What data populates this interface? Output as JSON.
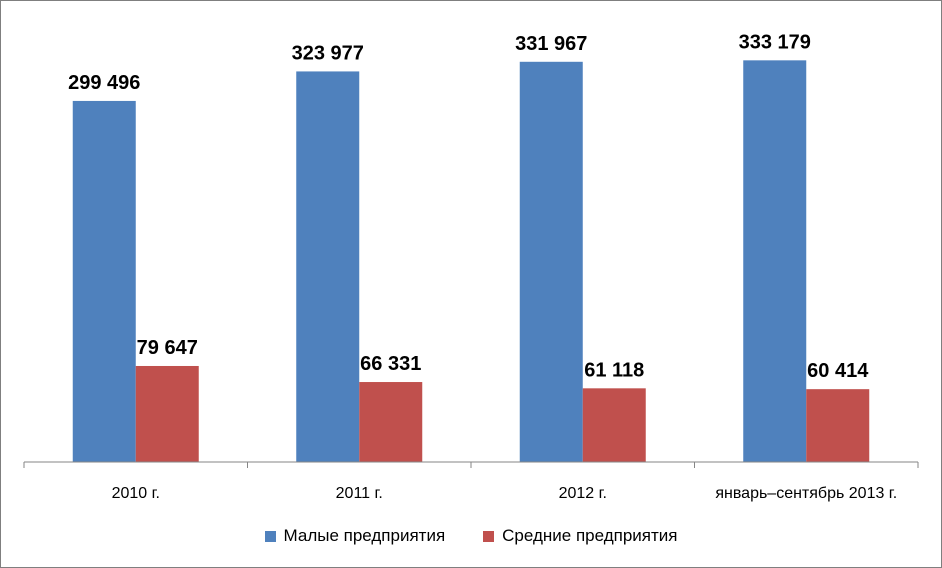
{
  "chart_data": {
    "type": "bar",
    "title": "",
    "xlabel": "",
    "ylabel": "",
    "ylim": [
      0,
      360000
    ],
    "grid": false,
    "legend_position": "bottom",
    "categories": [
      "2010 г.",
      "2011 г.",
      "2012 г.",
      "январь–сентябрь  2013 г."
    ],
    "series": [
      {
        "name": "Малые предприятия",
        "color": "#4f81bd",
        "values": [
          299496,
          323977,
          331967,
          333179
        ],
        "labels": [
          "299 496",
          "323 977",
          "331 967",
          "333 179"
        ]
      },
      {
        "name": "Средние предприятия",
        "color": "#c0504d",
        "values": [
          79647,
          66331,
          61118,
          60414
        ],
        "labels": [
          "79 647",
          "66 331",
          "61 118",
          "60 414"
        ]
      }
    ]
  }
}
